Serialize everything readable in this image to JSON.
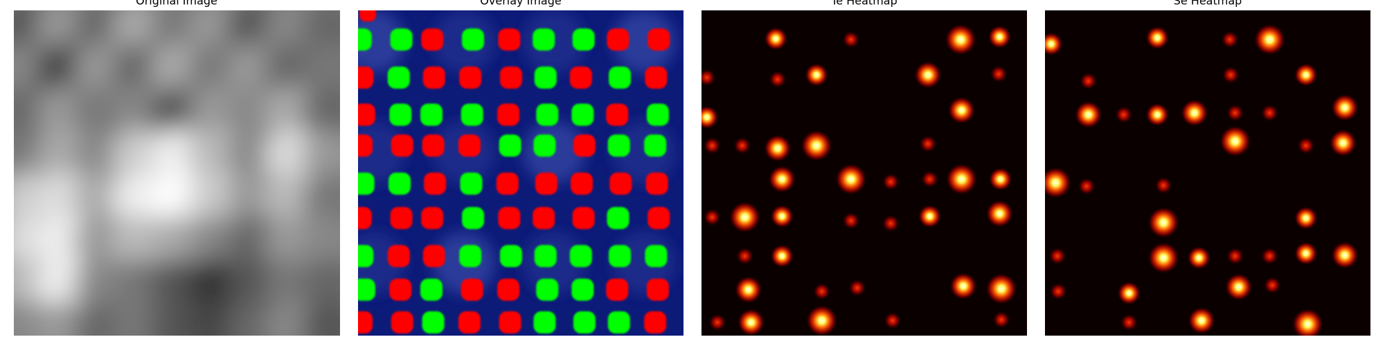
{
  "panels": [
    {
      "title": "Original Image"
    },
    {
      "title": "Overlay Image"
    },
    {
      "title": "Te Heatmap"
    },
    {
      "title": "Se Heatmap"
    }
  ]
}
